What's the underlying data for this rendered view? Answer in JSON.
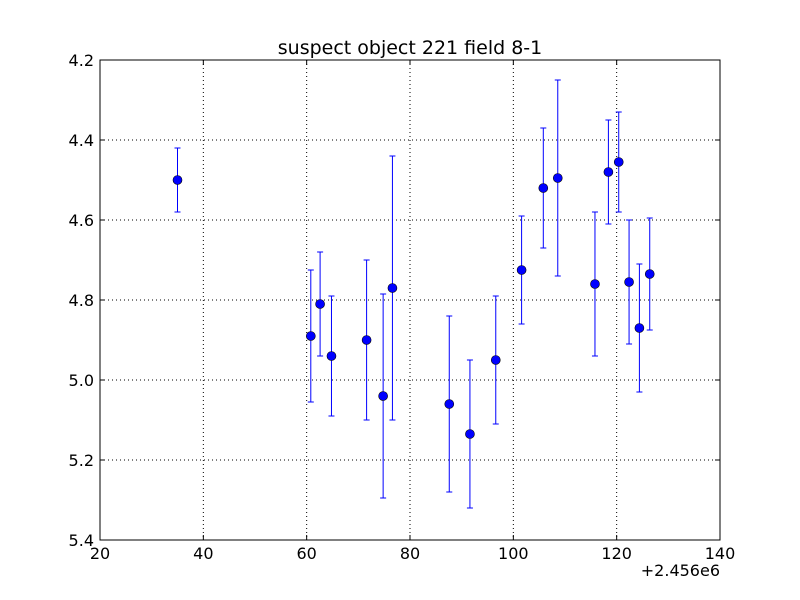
{
  "chart_data": {
    "type": "scatter",
    "title": "suspect object 221 field 8-1",
    "xlabel": "",
    "ylabel": "",
    "x_offset_label": "+2.456e6",
    "xlim": [
      20,
      140
    ],
    "ylim": [
      5.4,
      4.2
    ],
    "y_axis_inverted": true,
    "grid": true,
    "x_ticks": [
      "20",
      "40",
      "60",
      "80",
      "100",
      "120",
      "140"
    ],
    "y_ticks": [
      "4.2",
      "4.4",
      "4.6",
      "4.8",
      "5.0",
      "5.2",
      "5.4"
    ],
    "marker_color": "#0000ff",
    "series": [
      {
        "x": [
          35.0,
          60.8,
          62.6,
          64.8,
          71.6,
          74.8,
          76.6,
          87.6,
          91.6,
          96.6,
          101.6,
          105.8,
          108.6,
          115.8,
          118.4,
          120.4,
          122.4,
          124.4,
          126.4
        ],
        "y": [
          4.5,
          4.89,
          4.81,
          4.94,
          4.9,
          5.04,
          4.77,
          5.06,
          5.135,
          4.95,
          4.725,
          4.52,
          4.495,
          4.76,
          4.48,
          4.455,
          4.755,
          4.87,
          4.735
        ],
        "yerr": [
          0.08,
          0.165,
          0.13,
          0.15,
          0.2,
          0.255,
          0.33,
          0.22,
          0.185,
          0.16,
          0.135,
          0.15,
          0.245,
          0.18,
          0.13,
          0.125,
          0.155,
          0.16,
          0.14
        ]
      }
    ]
  }
}
